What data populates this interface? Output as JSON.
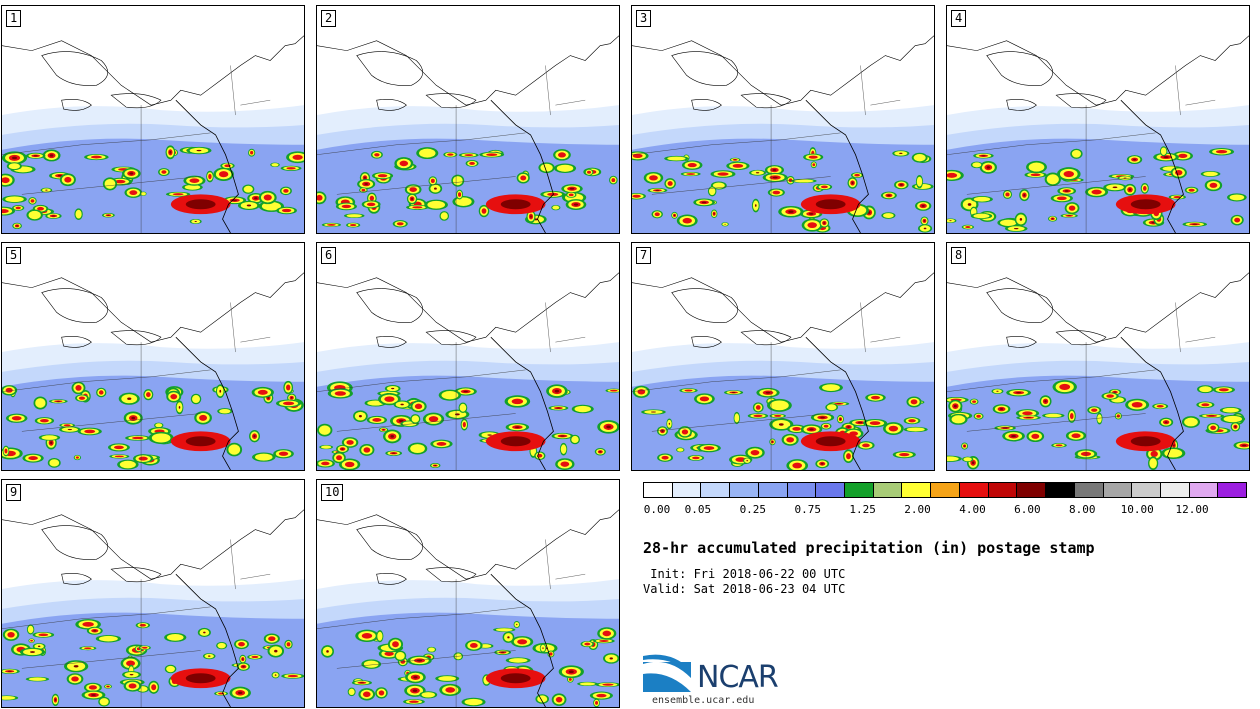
{
  "panels": [
    {
      "label": "1"
    },
    {
      "label": "2"
    },
    {
      "label": "3"
    },
    {
      "label": "4"
    },
    {
      "label": "5"
    },
    {
      "label": "6"
    },
    {
      "label": "7"
    },
    {
      "label": "8"
    },
    {
      "label": "9"
    },
    {
      "label": "10"
    }
  ],
  "colorbar": {
    "colors": [
      "#ffffff",
      "#e3eefd",
      "#c4d8fb",
      "#99b5f5",
      "#8aa4f2",
      "#7b8ff0",
      "#6a78ec",
      "#13a02a",
      "#a8cc77",
      "#ffff33",
      "#f5a317",
      "#e60f0f",
      "#c00606",
      "#7f0000",
      "#000000",
      "#787878",
      "#a6a6a6",
      "#cccccc",
      "#ececec",
      "#e0a9f0",
      "#9c1fe0"
    ],
    "tick_labels": [
      "0.00",
      "0.05",
      "0.25",
      "0.75",
      "1.25",
      "2.00",
      "4.00",
      "6.00",
      "8.00",
      "10.00",
      "12.00"
    ]
  },
  "title": "28-hr accumulated precipitation (in) postage stamp",
  "init": " Init: Fri 2018-06-22 00 UTC",
  "valid": "Valid: Sat 2018-06-23 04 UTC",
  "logo": {
    "text": "NCAR",
    "colors": [
      "#1b7fc4",
      "#1b3f6e"
    ]
  },
  "site": "ensemble.ucar.edu"
}
